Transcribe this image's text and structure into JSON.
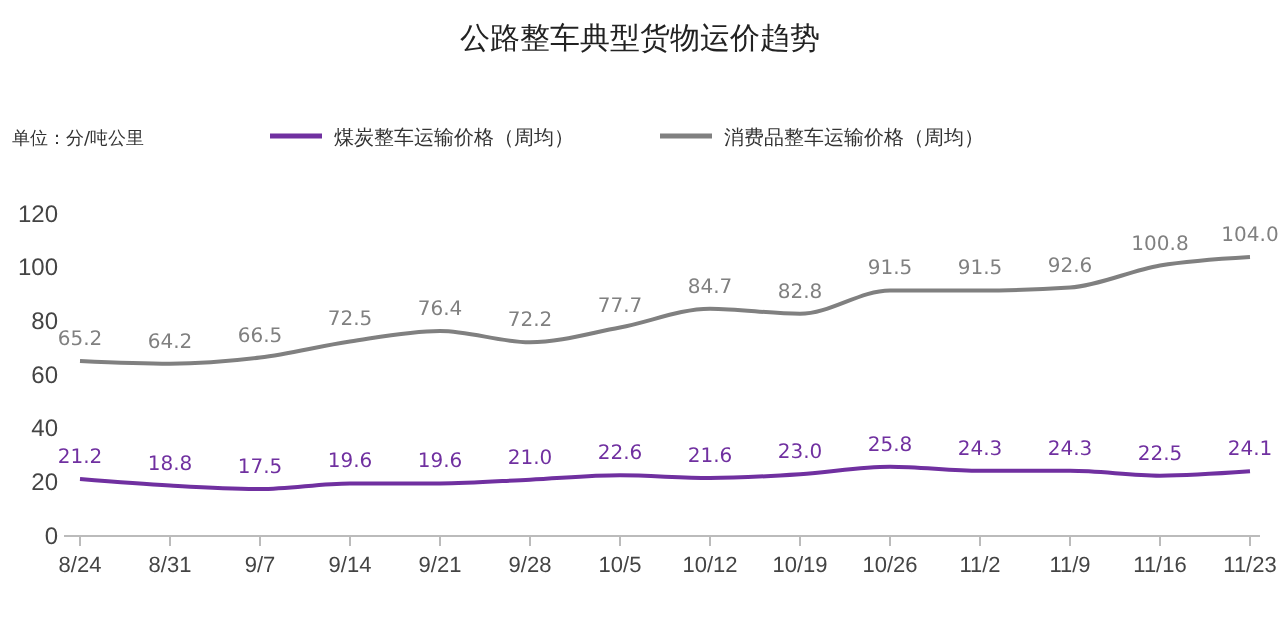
{
  "chart_data": {
    "type": "line",
    "title": "公路整车典型货物运价趋势",
    "ylabel": "单位：分/吨公里",
    "categories": [
      "8/24",
      "8/31",
      "9/7",
      "9/14",
      "9/21",
      "9/28",
      "10/5",
      "10/12",
      "10/19",
      "10/26",
      "11/2",
      "11/9",
      "11/16",
      "11/23"
    ],
    "series": [
      {
        "name": "煤炭整车运输价格（周均）",
        "color": "#7030a0",
        "values": [
          21.2,
          18.8,
          17.5,
          19.6,
          19.6,
          21.0,
          22.6,
          21.6,
          23.0,
          25.8,
          24.3,
          24.3,
          22.5,
          24.1
        ],
        "value_labels": [
          "21.2",
          "18.8",
          "17.5",
          "19.6",
          "19.6",
          "21.0",
          "22.6",
          "21.6",
          "23.0",
          "25.8",
          "24.3",
          "24.3",
          "22.5",
          "24.1"
        ]
      },
      {
        "name": "消费品整车运输价格（周均）",
        "color": "#808080",
        "values": [
          65.2,
          64.2,
          66.5,
          72.5,
          76.4,
          72.2,
          77.7,
          84.7,
          82.8,
          91.5,
          91.5,
          92.6,
          100.8,
          104.0
        ],
        "value_labels": [
          "65.2",
          "64.2",
          "66.5",
          "72.5",
          "76.4",
          "72.2",
          "77.7",
          "84.7",
          "82.8",
          "91.5",
          "91.5",
          "92.6",
          "100.8",
          "104.0"
        ]
      }
    ],
    "ylim": [
      0,
      120
    ],
    "yticks": [
      0,
      20,
      40,
      60,
      80,
      100,
      120
    ],
    "grid": false,
    "legend": "top",
    "marker": "none",
    "line_style": "solid"
  }
}
